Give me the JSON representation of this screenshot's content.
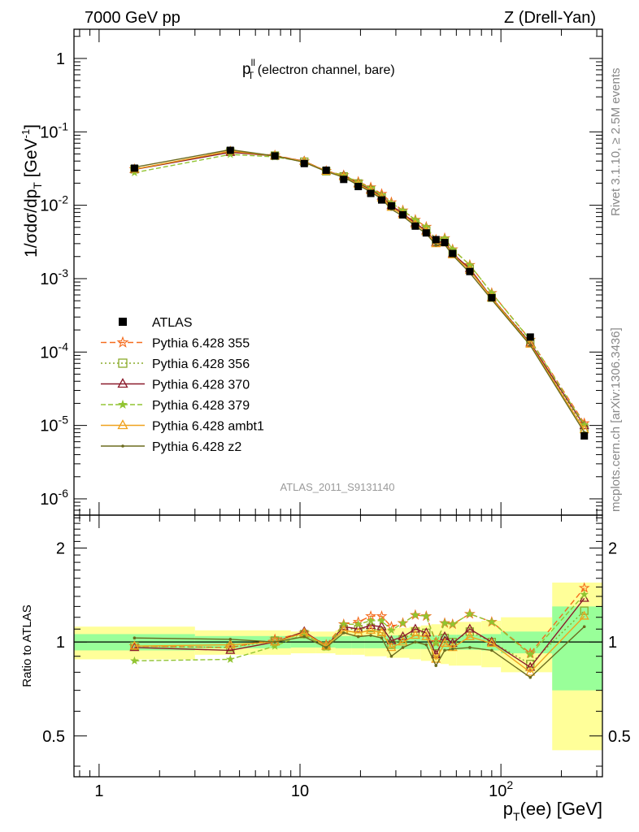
{
  "header": {
    "left": "7000 GeV pp",
    "right": "Z (Drell-Yan)"
  },
  "side": {
    "rivet": "Rivet 3.1.10, ≥ 2.5M events",
    "mcplots": "mcplots.cern.ch [arXiv:1306.3436]"
  },
  "chart_data": [
    {
      "type": "line",
      "title": "p_T^ll (electron channel, bare)",
      "title_main": "p",
      "title_sub": "T",
      "title_sup": "ll",
      "title_rest": " (electron channel, bare)",
      "ylabel": "1/σdσ/dp_T [GeV^-1]",
      "xscale": "log",
      "yscale": "log",
      "xlim": [
        0.75,
        320
      ],
      "ylim": [
        6e-07,
        2.5
      ],
      "x_ticks": [
        1,
        10,
        100
      ],
      "y_ticks": [
        1e-06,
        1e-05,
        0.0001,
        0.001,
        0.01,
        0.1,
        1
      ],
      "y_tick_labels": [
        {
          "base": "10",
          "exp": "-6"
        },
        {
          "base": "10",
          "exp": "-5"
        },
        {
          "base": "10",
          "exp": "-4"
        },
        {
          "base": "10",
          "exp": "-3"
        },
        {
          "base": "10",
          "exp": "-2"
        },
        {
          "base": "10",
          "exp": "-1"
        },
        {
          "base": "1",
          "exp": ""
        }
      ],
      "watermark": "ATLAS_2011_S9131140",
      "legend_position": "lower-left",
      "x": [
        1.5,
        4.5,
        7.5,
        10.5,
        13.5,
        16.5,
        19.5,
        22.5,
        25.5,
        28.5,
        32.5,
        37.5,
        42.5,
        47.5,
        52.5,
        57.5,
        70,
        90,
        140,
        260
      ],
      "data": {
        "name": "ATLAS",
        "values": [
          0.032,
          0.056,
          0.047,
          0.037,
          0.03,
          0.0225,
          0.018,
          0.0145,
          0.0118,
          0.0098,
          0.0074,
          0.0052,
          0.0042,
          0.0034,
          0.0031,
          0.0022,
          0.00125,
          0.00055,
          0.00016,
          7.2e-06
        ]
      }
    },
    {
      "type": "line",
      "ylabel": "Ratio to ATLAS",
      "xlabel_main": "p",
      "xlabel_sub": "T",
      "xlabel_rest": "(ee) [GeV]",
      "xscale": "log",
      "yscale": "log",
      "xlim": [
        0.75,
        320
      ],
      "ylim": [
        0.37,
        2.55
      ],
      "y_ticks": [
        0.5,
        1,
        2
      ],
      "y_tick_labels": [
        "0.5",
        "1",
        "2"
      ],
      "x_ticks": [
        1,
        10,
        100
      ],
      "x_tick_labels": [
        {
          "base": "1",
          "exp": ""
        },
        {
          "base": "10",
          "exp": ""
        },
        {
          "base": "10",
          "exp": "2"
        }
      ],
      "bands": {
        "edges": [
          0.75,
          3,
          9,
          12,
          15,
          18,
          21,
          24,
          27,
          30,
          35,
          40,
          45,
          50,
          55,
          60,
          80,
          100,
          180,
          320
        ],
        "inner": [
          0.06,
          0.045,
          0.04,
          0.04,
          0.045,
          0.045,
          0.045,
          0.045,
          0.05,
          0.05,
          0.05,
          0.05,
          0.05,
          0.055,
          0.055,
          0.055,
          0.06,
          0.08,
          0.3
        ],
        "outer": [
          0.12,
          0.09,
          0.08,
          0.08,
          0.09,
          0.09,
          0.1,
          0.1,
          0.11,
          0.11,
          0.12,
          0.13,
          0.14,
          0.15,
          0.16,
          0.16,
          0.17,
          0.2,
          0.55
        ]
      },
      "series": [
        {
          "name": "Pythia 6.428 355",
          "color": "#f56b1d",
          "dash": "7,4",
          "marker": "star-open",
          "values": [
            0.97,
            0.96,
            1.02,
            1.07,
            0.98,
            1.14,
            1.16,
            1.21,
            1.21,
            1.12,
            1.15,
            1.22,
            1.21,
            1.0,
            1.15,
            1.14,
            1.23,
            1.16,
            0.92,
            1.49
          ]
        },
        {
          "name": "Pythia 6.428 356",
          "color": "#8aaa2a",
          "dash": "2,3",
          "marker": "square-open",
          "values": [
            0.97,
            0.96,
            1.01,
            1.06,
            0.97,
            1.1,
            1.1,
            1.11,
            1.08,
            0.98,
            1.02,
            1.08,
            1.07,
            0.92,
            1.03,
            1.0,
            1.08,
            1.0,
            0.85,
            1.26
          ]
        },
        {
          "name": "Pythia 6.428 370",
          "color": "#8b1a2a",
          "dash": "",
          "marker": "triangle-open",
          "values": [
            0.96,
            0.94,
            1.0,
            1.08,
            0.97,
            1.12,
            1.1,
            1.13,
            1.12,
            1.01,
            1.04,
            1.1,
            1.07,
            0.91,
            1.04,
            0.99,
            1.1,
            1.0,
            0.83,
            1.38
          ]
        },
        {
          "name": "Pythia 6.428 379",
          "color": "#91c431",
          "dash": "6,3",
          "marker": "star-filled",
          "values": [
            0.87,
            0.88,
            0.97,
            1.06,
            0.96,
            1.14,
            1.14,
            1.17,
            1.17,
            1.09,
            1.15,
            1.22,
            1.21,
            0.99,
            1.15,
            1.14,
            1.23,
            1.16,
            0.91,
            1.42
          ]
        },
        {
          "name": "Pythia 6.428 ambt1",
          "color": "#f0a21e",
          "dash": "",
          "marker": "triangle-open",
          "values": [
            0.97,
            0.98,
            1.0,
            1.07,
            0.97,
            1.09,
            1.07,
            1.09,
            1.07,
            0.96,
            1.0,
            1.05,
            1.04,
            0.88,
            0.99,
            0.96,
            1.04,
            0.99,
            0.8,
            1.21
          ]
        },
        {
          "name": "Pythia 6.428 z2",
          "color": "#6b6b1e",
          "dash": "",
          "marker": "dot",
          "values": [
            1.03,
            1.02,
            1.0,
            1.04,
            0.96,
            1.07,
            1.04,
            1.05,
            1.03,
            0.9,
            0.96,
            1.0,
            0.98,
            0.84,
            0.94,
            0.95,
            0.96,
            0.94,
            0.77,
            1.12
          ]
        }
      ]
    }
  ]
}
